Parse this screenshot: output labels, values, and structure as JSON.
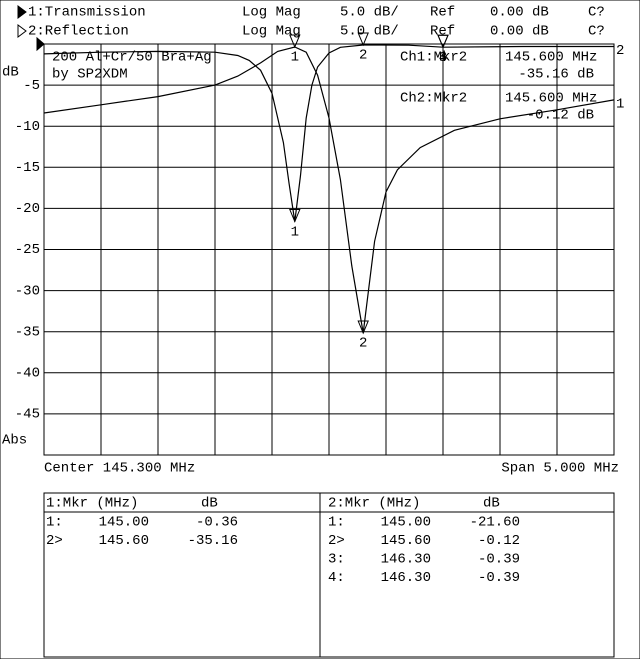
{
  "chart_data": {
    "type": "line",
    "annotations": [
      "200 Al+Cr/50 Bra+Ag",
      "by SP2XDM"
    ],
    "y_label": "dB",
    "y_mode": "Abs",
    "center_label": "Center 145.300 MHz",
    "span_label": "Span 5.000 MHz",
    "xlim": [
      142.8,
      147.8
    ],
    "xgrid": [
      143.3,
      143.8,
      144.3,
      144.8,
      145.3,
      145.8,
      146.3,
      146.8,
      147.3
    ],
    "ylim": [
      -50,
      0
    ],
    "yticks": [
      -5,
      -10,
      -15,
      -20,
      -25,
      -30,
      -35,
      -40,
      -45
    ],
    "grid": true,
    "series": [
      {
        "name": "1:Transmission",
        "id": "1",
        "format": "Log Mag",
        "scale": "5.0 dB/",
        "ref_label": "Ref",
        "ref": "0.00 dB",
        "cal": "C?",
        "color": "#000000",
        "x": [
          142.8,
          143.3,
          143.8,
          144.3,
          144.5,
          144.7,
          144.85,
          145.0,
          145.1,
          145.2,
          145.3,
          145.4,
          145.5,
          145.6,
          145.7,
          145.8,
          145.9,
          146.1,
          146.4,
          146.8,
          147.3,
          147.8
        ],
        "values": [
          -8.4,
          -7.4,
          -6.4,
          -5.0,
          -3.9,
          -2.3,
          -0.9,
          -0.36,
          -1.0,
          -3.8,
          -9,
          -16.5,
          -27,
          -35.16,
          -24,
          -18,
          -15.3,
          -12.6,
          -10.5,
          -9.1,
          -8.0,
          -6.8
        ],
        "readout": {
          "title": "Ch1:Mkr2",
          "freq": "145.600 MHz",
          "value": "-35.16 dB"
        },
        "table_header": "1:Mkr (MHz)",
        "table_unit": "dB",
        "markers": [
          {
            "name": "1",
            "tag": "1:",
            "x": 145.0,
            "x_label": "145.00",
            "value": -0.36,
            "value_label": "-0.36"
          },
          {
            "name": "2",
            "tag": "2>",
            "x": 145.6,
            "x_label": "145.60",
            "value": -35.16,
            "value_label": "-35.16"
          }
        ]
      },
      {
        "name": "2:Reflection",
        "id": "2",
        "format": "Log Mag",
        "scale": "5.0 dB/",
        "ref_label": "Ref",
        "ref": "0.00 dB",
        "cal": "C?",
        "color": "#000000",
        "x": [
          142.8,
          143.3,
          143.8,
          144.3,
          144.5,
          144.6,
          144.7,
          144.8,
          144.9,
          144.95,
          145.0,
          145.05,
          145.1,
          145.15,
          145.2,
          145.3,
          145.4,
          145.6,
          146.0,
          146.3,
          147.0,
          147.8
        ],
        "values": [
          -1.2,
          -1.0,
          -0.9,
          -1.0,
          -1.4,
          -2.0,
          -3.2,
          -6,
          -12,
          -17,
          -21.6,
          -16,
          -9,
          -5,
          -2.8,
          -1.1,
          -0.4,
          -0.12,
          -0.15,
          -0.39,
          -0.3,
          -0.3
        ],
        "readout": {
          "title": "Ch2:Mkr2",
          "freq": "145.600 MHz",
          "value": "-0.12 dB"
        },
        "table_header": "2:Mkr (MHz)",
        "table_unit": "dB",
        "markers": [
          {
            "name": "1",
            "tag": "1:",
            "x": 145.0,
            "x_label": "145.00",
            "value": -21.6,
            "value_label": "-21.60"
          },
          {
            "name": "2",
            "tag": "2>",
            "x": 145.6,
            "x_label": "145.60",
            "value": -0.12,
            "value_label": "-0.12"
          },
          {
            "name": "3",
            "tag": "3:",
            "x": 146.3,
            "x_label": "146.30",
            "value": -0.39,
            "value_label": "-0.39"
          },
          {
            "name": "4",
            "tag": "4:",
            "x": 146.3,
            "x_label": "146.30",
            "value": -0.39,
            "value_label": "-0.39"
          }
        ]
      }
    ]
  }
}
